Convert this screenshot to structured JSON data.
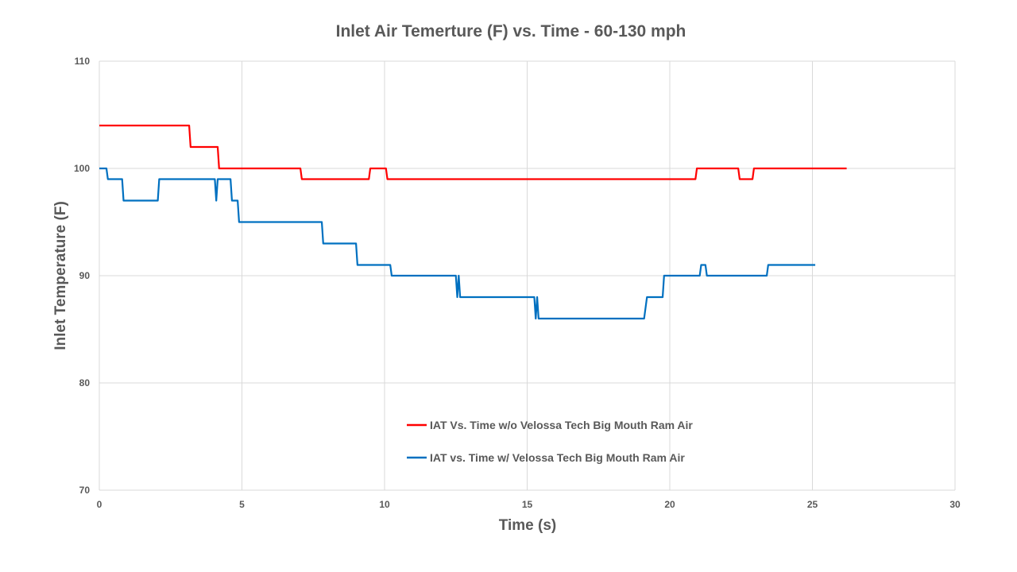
{
  "chart_data": {
    "type": "line",
    "title": "Inlet Air Temerture (F) vs. Time  - 60-130 mph",
    "xlabel": "Time (s)",
    "ylabel": "Inlet Temperature (F)",
    "xlim": [
      0,
      30
    ],
    "ylim": [
      70,
      110
    ],
    "xticks": [
      0,
      5,
      10,
      15,
      20,
      25,
      30
    ],
    "yticks": [
      70,
      80,
      90,
      100,
      110
    ],
    "grid": true,
    "legend_position": "inside-bottom-center",
    "series": [
      {
        "name": "IAT Vs. Time w/o Velossa Tech Big Mouth Ram Air",
        "color": "#ff0000",
        "points": [
          [
            0,
            104
          ],
          [
            3.15,
            104
          ],
          [
            3.2,
            102
          ],
          [
            4.15,
            102
          ],
          [
            4.2,
            100
          ],
          [
            7.05,
            100
          ],
          [
            7.1,
            99
          ],
          [
            9.45,
            99
          ],
          [
            9.5,
            100
          ],
          [
            10.05,
            100
          ],
          [
            10.1,
            99
          ],
          [
            20.9,
            99
          ],
          [
            20.95,
            100
          ],
          [
            22.4,
            100
          ],
          [
            22.45,
            99
          ],
          [
            22.9,
            99
          ],
          [
            22.95,
            100
          ],
          [
            26.2,
            100
          ]
        ]
      },
      {
        "name": "IAT vs. Time w/ Velossa Tech Big Mouth Ram Air",
        "color": "#0070c0",
        "points": [
          [
            0,
            100
          ],
          [
            0.25,
            100
          ],
          [
            0.3,
            99
          ],
          [
            0.8,
            99
          ],
          [
            0.85,
            97
          ],
          [
            2.05,
            97
          ],
          [
            2.1,
            99
          ],
          [
            4.05,
            99
          ],
          [
            4.1,
            97
          ],
          [
            4.15,
            99
          ],
          [
            4.6,
            99
          ],
          [
            4.65,
            97
          ],
          [
            4.85,
            97
          ],
          [
            4.9,
            95
          ],
          [
            7.8,
            95
          ],
          [
            7.85,
            93
          ],
          [
            9.0,
            93
          ],
          [
            9.05,
            91
          ],
          [
            10.2,
            91
          ],
          [
            10.25,
            90
          ],
          [
            12.5,
            90
          ],
          [
            12.55,
            88
          ],
          [
            12.6,
            90
          ],
          [
            12.65,
            88
          ],
          [
            15.25,
            88
          ],
          [
            15.3,
            86
          ],
          [
            15.35,
            88
          ],
          [
            15.4,
            86
          ],
          [
            19.1,
            86
          ],
          [
            19.2,
            88
          ],
          [
            19.75,
            88
          ],
          [
            19.8,
            90
          ],
          [
            21.05,
            90
          ],
          [
            21.1,
            91
          ],
          [
            21.25,
            91
          ],
          [
            21.3,
            90
          ],
          [
            23.4,
            90
          ],
          [
            23.45,
            91
          ],
          [
            25.1,
            91
          ]
        ]
      }
    ]
  }
}
